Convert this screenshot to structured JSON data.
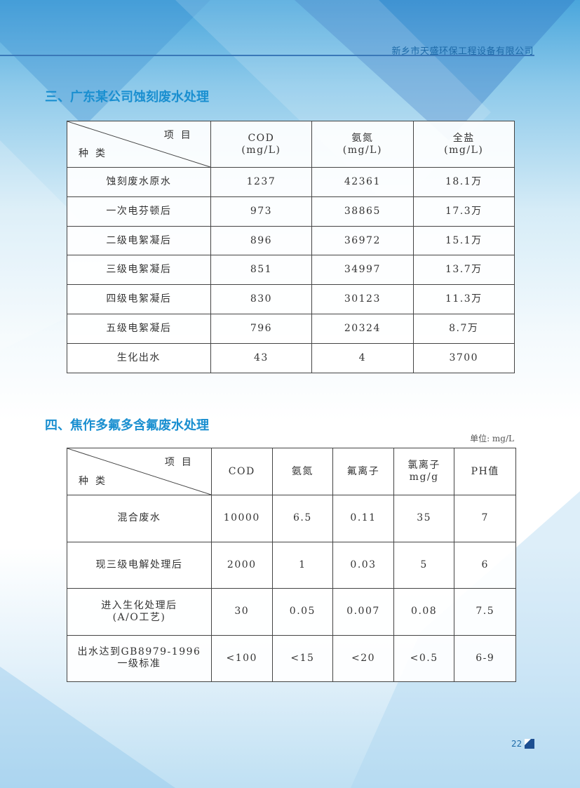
{
  "header": {
    "company": "新乡市天盛环保工程设备有限公司"
  },
  "section3": {
    "title": "三、广东某公司蚀刻废水处理",
    "corner": {
      "item": "项目",
      "kind": "种类"
    },
    "columns": [
      [
        "COD",
        "(mg/L)"
      ],
      [
        "氨氮",
        "(mg/L)"
      ],
      [
        "全盐",
        "(mg/L)"
      ]
    ],
    "rows": [
      [
        "蚀刻废水原水",
        "1237",
        "42361",
        "18.1万"
      ],
      [
        "一次电芬顿后",
        "973",
        "38865",
        "17.3万"
      ],
      [
        "二级电絮凝后",
        "896",
        "36972",
        "15.1万"
      ],
      [
        "三级电絮凝后",
        "851",
        "34997",
        "13.7万"
      ],
      [
        "四级电絮凝后",
        "830",
        "30123",
        "11.3万"
      ],
      [
        "五级电絮凝后",
        "796",
        "20324",
        "8.7万"
      ],
      [
        "生化出水",
        "43",
        "4",
        "3700"
      ]
    ]
  },
  "section4": {
    "title": "四、焦作多氟多含氟废水处理",
    "unit": "单位: mg/L",
    "corner": {
      "item": "项目",
      "kind": "种类"
    },
    "columns": [
      [
        "COD",
        ""
      ],
      [
        "氨氮",
        ""
      ],
      [
        "氟离子",
        ""
      ],
      [
        "氯离子",
        "mg/g"
      ],
      [
        "PH值",
        ""
      ]
    ],
    "rows": [
      [
        [
          "混合废水",
          ""
        ],
        "10000",
        "6.5",
        "0.11",
        "35",
        "7"
      ],
      [
        [
          "现三级电解处理后",
          ""
        ],
        "2000",
        "1",
        "0.03",
        "5",
        "6"
      ],
      [
        [
          "进入生化处理后",
          "(A/O工艺)"
        ],
        "30",
        "0.05",
        "0.007",
        "0.08",
        "7.5"
      ],
      [
        [
          "出水达到GB8979-1996",
          "一级标准"
        ],
        "<100",
        "<15",
        "<20",
        "<0.5",
        "6-9"
      ]
    ]
  },
  "footer": {
    "page": "22"
  },
  "colors": {
    "accent": "#1a8fd0",
    "rule": "#3a78b8"
  }
}
